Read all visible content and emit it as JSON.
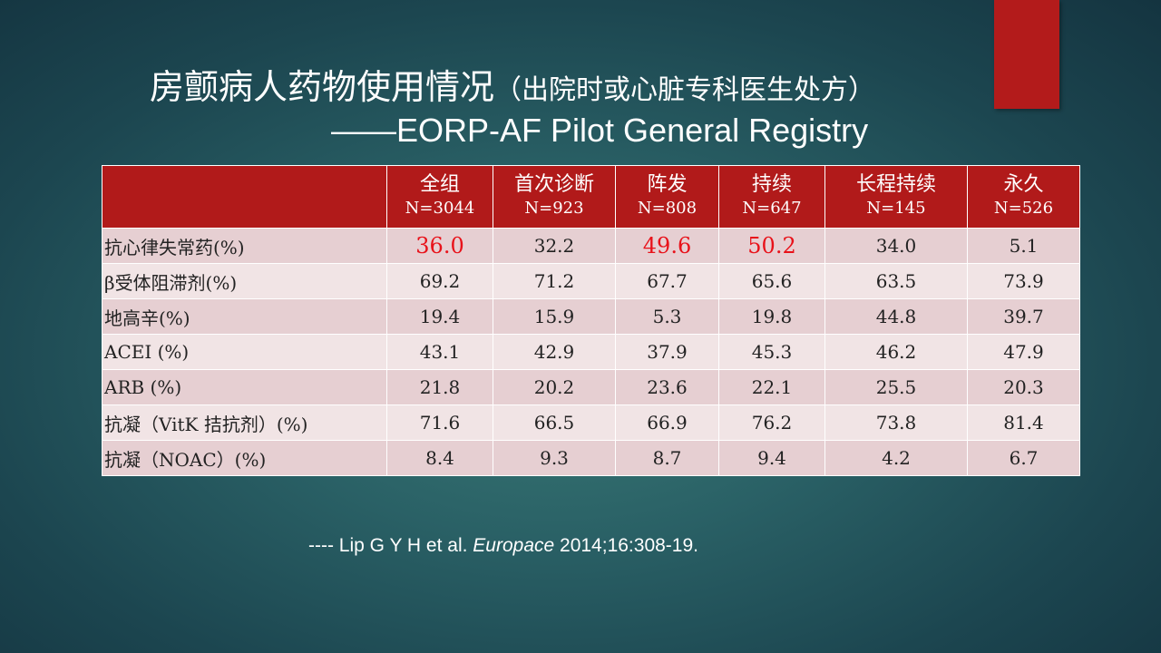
{
  "title": {
    "main": "房颤病人药物使用情况",
    "paren": "（出院时或心脏专科医生处方）",
    "line2": "——EORP-AF Pilot General Registry"
  },
  "colors": {
    "accent": "#b11a1a",
    "highlight": "#e8121a",
    "row_odd": "#e6cfd2",
    "row_even": "#f1e4e5"
  },
  "table": {
    "headers": [
      {
        "name": "全组",
        "n": "N=3044"
      },
      {
        "name": "首次诊断",
        "n": "N=923"
      },
      {
        "name": "阵发",
        "n": "N=808"
      },
      {
        "name": "持续",
        "n": "N=647"
      },
      {
        "name": "长程持续",
        "n": "N=145"
      },
      {
        "name": "永久",
        "n": "N=526"
      }
    ],
    "rows": [
      {
        "label": "抗心律失常药(%)",
        "values": [
          "36.0",
          "32.2",
          "49.6",
          "50.2",
          "34.0",
          "5.1"
        ]
      },
      {
        "label": "β受体阻滞剂(%)",
        "values": [
          "69.2",
          "71.2",
          "67.7",
          "65.6",
          "63.5",
          "73.9"
        ]
      },
      {
        "label": "地高辛(%)",
        "values": [
          "19.4",
          "15.9",
          "5.3",
          "19.8",
          "44.8",
          "39.7"
        ]
      },
      {
        "label": "ACEI (%)",
        "values": [
          "43.1",
          "42.9",
          "37.9",
          "45.3",
          "46.2",
          "47.9"
        ]
      },
      {
        "label": "ARB (%)",
        "values": [
          "21.8",
          "20.2",
          "23.6",
          "22.1",
          "25.5",
          "20.3"
        ]
      },
      {
        "label": "抗凝（VitK 拮抗剂）(%)",
        "values": [
          "71.6",
          "66.5",
          "66.9",
          "76.2",
          "73.8",
          "81.4"
        ]
      },
      {
        "label": "抗凝（NOAC）(%)",
        "values": [
          "8.4",
          "9.3",
          "8.7",
          "9.4",
          "4.2",
          "6.7"
        ]
      }
    ]
  },
  "citation": {
    "prefix": "----  Lip G Y H et al. ",
    "journal": "Europace",
    "rest": " 2014;16:308-19."
  }
}
